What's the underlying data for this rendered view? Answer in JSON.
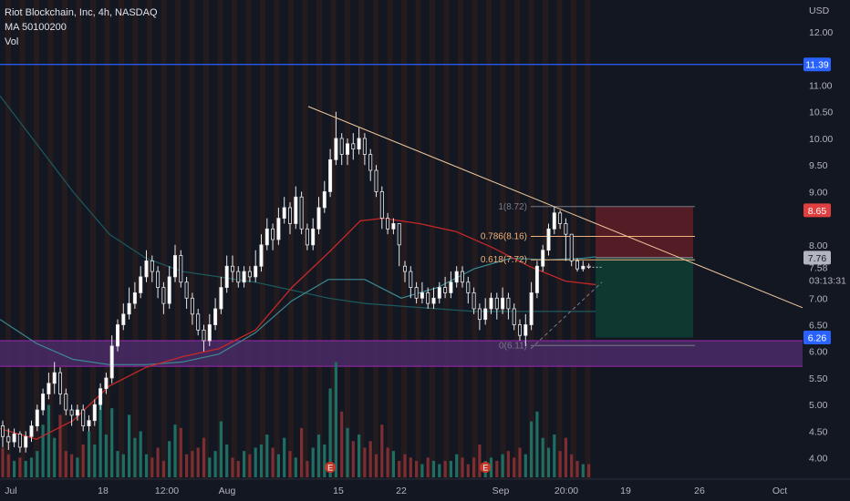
{
  "header": {
    "title": "Riot Blockchain, Inc, 4h, NASDAQ",
    "indicator": "MA 50100200",
    "volume": "Vol"
  },
  "currency": "USD",
  "price_tags": {
    "line": {
      "label": "11.39",
      "value": 11.39,
      "color": "#2962ff"
    },
    "upper": {
      "label": "8.65",
      "value": 8.65,
      "color": "#e03f3f"
    },
    "last": {
      "label": "7.76",
      "value": 7.76,
      "color": "#b2b5be"
    },
    "bid": {
      "label": "7.58",
      "value": 7.58
    },
    "countdown": "03:13:31",
    "lower": {
      "label": "6.26",
      "value": 6.26,
      "color": "#2962ff"
    }
  },
  "chart_data": {
    "type": "candlestick",
    "title": "Riot Blockchain, Inc, 4h, NASDAQ",
    "ylim": [
      3.6,
      12.6
    ],
    "y_ticks": [
      {
        "v": 12.0,
        "label": "12.00"
      },
      {
        "v": 11.0,
        "label": "11.00"
      },
      {
        "v": 10.5,
        "label": "10.50"
      },
      {
        "v": 10.0,
        "label": "10.00"
      },
      {
        "v": 9.5,
        "label": "9.50"
      },
      {
        "v": 9.0,
        "label": "9.00"
      },
      {
        "v": 8.0,
        "label": "8.00"
      },
      {
        "v": 7.0,
        "label": "7.00"
      },
      {
        "v": 6.5,
        "label": "6.50"
      },
      {
        "v": 6.0,
        "label": "6.00"
      },
      {
        "v": 5.5,
        "label": "5.50"
      },
      {
        "v": 5.0,
        "label": "5.00"
      },
      {
        "v": 4.5,
        "label": "4.50"
      },
      {
        "v": 4.0,
        "label": "4.00"
      }
    ],
    "x_ticks": [
      "Jul",
      "18",
      "12:00",
      "Aug",
      "15",
      "22",
      "Sep",
      "20:00",
      "19",
      "26",
      "Oct"
    ],
    "fib_levels": [
      {
        "label": "1(8.72)",
        "value": 8.72,
        "color": "#787b86"
      },
      {
        "label": "0.786(8.16)",
        "value": 8.16,
        "color": "#f0b27a"
      },
      {
        "label": "0.618(7.72)",
        "value": 7.72,
        "color": "#f0b27a"
      },
      {
        "label": "0(6.11)",
        "value": 6.11,
        "color": "#787b86"
      }
    ],
    "horizontal_line": 11.39,
    "zone": {
      "top": 6.2,
      "bottom": 5.72
    },
    "position": {
      "entry": 7.76,
      "stop": 8.72,
      "target": 6.26
    },
    "trendline": [
      [
        338,
        10.6
      ],
      [
        880,
        6.82
      ]
    ],
    "ma_fast": [
      [
        0,
        4.55
      ],
      [
        40,
        4.35
      ],
      [
        80,
        4.7
      ],
      [
        120,
        5.35
      ],
      [
        160,
        5.7
      ],
      [
        200,
        5.9
      ],
      [
        240,
        6.05
      ],
      [
        280,
        6.4
      ],
      [
        320,
        7.2
      ],
      [
        360,
        7.85
      ],
      [
        395,
        8.45
      ],
      [
        420,
        8.5
      ],
      [
        460,
        8.4
      ],
      [
        500,
        8.25
      ],
      [
        540,
        7.95
      ],
      [
        580,
        7.6
      ],
      [
        620,
        7.32
      ],
      [
        655,
        7.25
      ]
    ],
    "ma_mid": [
      [
        0,
        6.6
      ],
      [
        40,
        6.15
      ],
      [
        80,
        5.85
      ],
      [
        120,
        5.75
      ],
      [
        160,
        5.75
      ],
      [
        200,
        5.8
      ],
      [
        240,
        5.95
      ],
      [
        280,
        6.35
      ],
      [
        320,
        6.95
      ],
      [
        360,
        7.35
      ],
      [
        400,
        7.35
      ],
      [
        440,
        7.0
      ],
      [
        480,
        7.2
      ],
      [
        520,
        7.55
      ],
      [
        560,
        7.75
      ],
      [
        600,
        7.72
      ],
      [
        640,
        7.75
      ],
      [
        655,
        7.78
      ]
    ],
    "ma_slow": [
      [
        0,
        10.8
      ],
      [
        40,
        9.9
      ],
      [
        80,
        9.0
      ],
      [
        120,
        8.2
      ],
      [
        160,
        7.75
      ],
      [
        200,
        7.5
      ],
      [
        240,
        7.4
      ],
      [
        280,
        7.3
      ],
      [
        320,
        7.15
      ],
      [
        360,
        7.0
      ],
      [
        400,
        6.9
      ],
      [
        440,
        6.85
      ],
      [
        480,
        6.8
      ],
      [
        520,
        6.75
      ],
      [
        560,
        6.75
      ],
      [
        600,
        6.75
      ],
      [
        640,
        6.75
      ],
      [
        655,
        6.75
      ]
    ],
    "candles": [
      [
        4.6,
        4.4,
        4.7,
        4.2
      ],
      [
        4.4,
        4.3,
        4.55,
        4.15
      ],
      [
        4.3,
        4.45,
        4.55,
        4.2
      ],
      [
        4.45,
        4.2,
        4.5,
        4.1
      ],
      [
        4.2,
        4.4,
        4.5,
        4.1
      ],
      [
        4.4,
        4.6,
        4.7,
        4.3
      ],
      [
        4.6,
        4.9,
        5.0,
        4.5
      ],
      [
        4.9,
        5.2,
        5.3,
        4.8
      ],
      [
        5.2,
        5.4,
        5.6,
        5.1
      ],
      [
        5.4,
        5.6,
        5.8,
        5.2
      ],
      [
        5.6,
        5.2,
        5.7,
        5.0
      ],
      [
        5.2,
        4.9,
        5.3,
        4.8
      ],
      [
        4.9,
        4.8,
        5.0,
        4.6
      ],
      [
        4.8,
        4.9,
        5.0,
        4.7
      ],
      [
        4.9,
        4.6,
        5.0,
        4.5
      ],
      [
        4.6,
        4.7,
        4.8,
        4.5
      ],
      [
        4.7,
        5.0,
        5.1,
        4.6
      ],
      [
        5.0,
        5.3,
        5.4,
        4.9
      ],
      [
        5.3,
        5.5,
        5.6,
        5.2
      ],
      [
        5.5,
        6.1,
        6.3,
        5.4
      ],
      [
        6.1,
        6.5,
        6.6,
        6.0
      ],
      [
        6.5,
        6.7,
        6.9,
        6.4
      ],
      [
        6.7,
        6.9,
        7.2,
        6.6
      ],
      [
        6.9,
        7.1,
        7.3,
        6.8
      ],
      [
        7.1,
        7.4,
        7.6,
        7.0
      ],
      [
        7.4,
        7.7,
        7.9,
        7.3
      ],
      [
        7.7,
        7.5,
        7.8,
        7.3
      ],
      [
        7.5,
        7.2,
        7.6,
        7.0
      ],
      [
        7.2,
        6.9,
        7.3,
        6.7
      ],
      [
        6.9,
        7.4,
        7.6,
        6.8
      ],
      [
        7.4,
        7.8,
        8.0,
        7.3
      ],
      [
        7.8,
        7.3,
        7.9,
        7.2
      ],
      [
        7.3,
        7.0,
        7.4,
        6.8
      ],
      [
        7.0,
        6.7,
        7.1,
        6.5
      ],
      [
        6.7,
        6.4,
        6.8,
        6.3
      ],
      [
        6.4,
        6.2,
        6.5,
        6.0
      ],
      [
        6.2,
        6.5,
        6.7,
        6.1
      ],
      [
        6.5,
        6.8,
        7.0,
        6.4
      ],
      [
        6.8,
        7.2,
        7.4,
        6.7
      ],
      [
        7.2,
        7.6,
        7.8,
        7.1
      ],
      [
        7.6,
        7.5,
        7.8,
        7.3
      ],
      [
        7.5,
        7.3,
        7.6,
        7.2
      ],
      [
        7.3,
        7.5,
        7.6,
        7.2
      ],
      [
        7.5,
        7.4,
        7.6,
        7.3
      ],
      [
        7.4,
        7.6,
        7.9,
        7.3
      ],
      [
        7.6,
        8.0,
        8.2,
        7.5
      ],
      [
        8.0,
        8.3,
        8.5,
        7.9
      ],
      [
        8.3,
        8.1,
        8.4,
        7.9
      ],
      [
        8.1,
        8.5,
        8.7,
        8.0
      ],
      [
        8.5,
        8.7,
        8.9,
        8.4
      ],
      [
        8.7,
        8.4,
        8.8,
        8.2
      ],
      [
        8.4,
        8.9,
        9.1,
        8.3
      ],
      [
        8.9,
        8.3,
        9.0,
        8.2
      ],
      [
        8.3,
        8.0,
        8.4,
        7.9
      ],
      [
        8.0,
        8.3,
        8.5,
        7.9
      ],
      [
        8.3,
        8.7,
        8.9,
        8.2
      ],
      [
        8.7,
        9.0,
        9.2,
        8.6
      ],
      [
        9.0,
        9.6,
        9.8,
        8.9
      ],
      [
        9.6,
        10.0,
        10.5,
        9.5
      ],
      [
        10.0,
        9.7,
        10.1,
        9.5
      ],
      [
        9.7,
        9.9,
        10.0,
        9.5
      ],
      [
        9.9,
        9.8,
        10.1,
        9.6
      ],
      [
        9.8,
        10.0,
        10.2,
        9.7
      ],
      [
        10.0,
        9.7,
        10.1,
        9.5
      ],
      [
        9.7,
        9.4,
        9.8,
        9.2
      ],
      [
        9.4,
        9.0,
        9.5,
        8.9
      ],
      [
        9.0,
        8.5,
        9.1,
        8.3
      ],
      [
        8.5,
        8.3,
        8.6,
        8.2
      ],
      [
        8.3,
        8.4,
        8.5,
        8.2
      ],
      [
        8.4,
        8.0,
        8.4,
        7.6
      ],
      [
        7.6,
        7.5,
        7.7,
        7.3
      ],
      [
        7.5,
        7.2,
        7.6,
        7.0
      ],
      [
        7.2,
        7.0,
        7.3,
        6.9
      ],
      [
        7.0,
        7.1,
        7.3,
        6.9
      ],
      [
        7.1,
        6.9,
        7.2,
        6.8
      ],
      [
        6.9,
        7.0,
        7.2,
        6.8
      ],
      [
        7.0,
        7.2,
        7.3,
        6.9
      ],
      [
        7.2,
        7.1,
        7.4,
        7.0
      ],
      [
        7.1,
        7.3,
        7.5,
        7.0
      ],
      [
        7.3,
        7.5,
        7.6,
        7.2
      ],
      [
        7.5,
        7.3,
        7.6,
        7.2
      ],
      [
        7.3,
        7.1,
        7.4,
        6.9
      ],
      [
        7.1,
        6.8,
        7.2,
        6.7
      ],
      [
        6.8,
        6.6,
        6.9,
        6.4
      ],
      [
        6.6,
        6.8,
        7.0,
        6.5
      ],
      [
        6.8,
        7.0,
        7.1,
        6.7
      ],
      [
        7.0,
        6.8,
        7.1,
        6.6
      ],
      [
        6.8,
        7.0,
        7.2,
        6.7
      ],
      [
        7.0,
        6.8,
        7.1,
        6.6
      ],
      [
        6.8,
        6.5,
        6.9,
        6.4
      ],
      [
        6.5,
        6.3,
        6.6,
        6.2
      ],
      [
        6.3,
        6.5,
        6.7,
        6.1
      ],
      [
        6.5,
        7.1,
        7.3,
        6.4
      ],
      [
        7.1,
        7.6,
        7.7,
        7.0
      ],
      [
        7.6,
        7.9,
        8.0,
        7.5
      ],
      [
        7.9,
        8.3,
        8.4,
        7.8
      ],
      [
        8.3,
        8.6,
        8.72,
        8.2
      ],
      [
        8.6,
        8.4,
        8.65,
        8.3
      ],
      [
        8.4,
        8.2,
        8.5,
        7.7
      ],
      [
        8.2,
        7.7,
        8.2,
        7.6
      ],
      [
        7.7,
        7.55,
        7.75,
        7.5
      ],
      [
        7.55,
        7.6,
        7.7,
        7.5
      ],
      [
        7.6,
        7.58,
        7.65,
        7.55
      ]
    ],
    "volumes": [
      0.9,
      0.7,
      0.5,
      0.6,
      0.5,
      0.6,
      0.8,
      1.6,
      2.2,
      1.2,
      1.9,
      0.8,
      0.7,
      0.6,
      1.0,
      1.4,
      1.0,
      2.2,
      1.3,
      2.1,
      0.8,
      0.7,
      1.9,
      1.2,
      1.4,
      0.7,
      0.6,
      0.9,
      0.5,
      1.1,
      1.6,
      1.5,
      0.7,
      0.8,
      0.9,
      1.2,
      0.6,
      0.8,
      1.7,
      1.0,
      0.6,
      0.5,
      0.8,
      0.7,
      0.9,
      1.0,
      1.3,
      0.9,
      0.7,
      1.2,
      0.8,
      0.6,
      1.5,
      0.5,
      0.9,
      1.3,
      1.0,
      2.7,
      3.5,
      2.0,
      1.5,
      1.1,
      1.3,
      0.9,
      1.1,
      0.7,
      1.6,
      0.9,
      0.8,
      0.5,
      0.7,
      0.6,
      0.5,
      0.4,
      0.6,
      0.5,
      0.4,
      0.5,
      0.5,
      0.7,
      0.6,
      0.4,
      0.6,
      1.0,
      0.5,
      0.6,
      0.5,
      0.7,
      0.8,
      0.6,
      0.9,
      0.7,
      1.7,
      2.0,
      1.2,
      0.9,
      1.3,
      0.8,
      1.2,
      0.7,
      0.5,
      0.4,
      0.4
    ],
    "earnings_markers": [
      57,
      84
    ]
  }
}
